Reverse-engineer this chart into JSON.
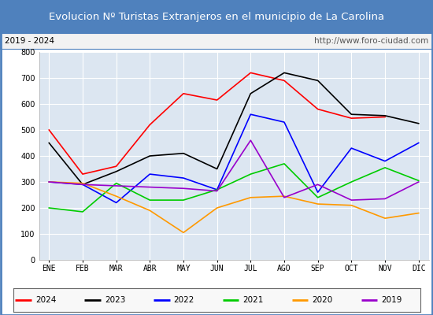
{
  "title": "Evolucion Nº Turistas Extranjeros en el municipio de La Carolina",
  "subtitle_left": "2019 - 2024",
  "subtitle_right": "http://www.foro-ciudad.com",
  "months": [
    "ENE",
    "FEB",
    "MAR",
    "ABR",
    "MAY",
    "JUN",
    "JUL",
    "AGO",
    "SEP",
    "OCT",
    "NOV",
    "DIC"
  ],
  "series": {
    "2024": [
      500,
      330,
      360,
      520,
      640,
      615,
      720,
      690,
      580,
      545,
      550,
      null
    ],
    "2023": [
      450,
      290,
      340,
      400,
      410,
      350,
      640,
      720,
      690,
      560,
      555,
      525
    ],
    "2022": [
      300,
      290,
      220,
      330,
      315,
      270,
      560,
      530,
      260,
      430,
      380,
      450
    ],
    "2021": [
      200,
      185,
      295,
      230,
      230,
      270,
      330,
      370,
      240,
      300,
      355,
      305
    ],
    "2020": [
      300,
      295,
      245,
      190,
      105,
      200,
      240,
      245,
      215,
      210,
      160,
      180
    ],
    "2019": [
      300,
      290,
      285,
      280,
      275,
      265,
      460,
      240,
      290,
      230,
      235,
      300
    ]
  },
  "colors": {
    "2024": "#ff0000",
    "2023": "#000000",
    "2022": "#0000ff",
    "2021": "#00cc00",
    "2020": "#ff9900",
    "2019": "#9900cc"
  },
  "ylim": [
    0,
    800
  ],
  "yticks": [
    0,
    100,
    200,
    300,
    400,
    500,
    600,
    700,
    800
  ],
  "title_bgcolor": "#4f81bd",
  "title_fgcolor": "#ffffff",
  "plot_bgcolor": "#dce6f1",
  "grid_color": "#ffffff",
  "border_color": "#4f81bd",
  "title_fontsize": 9.5,
  "axis_fontsize": 7,
  "legend_fontsize": 7.5
}
